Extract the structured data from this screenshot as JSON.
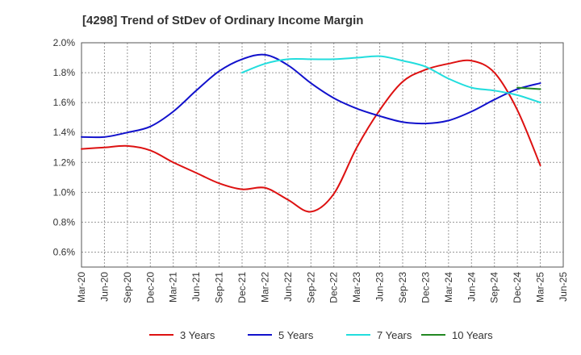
{
  "chart_data": {
    "type": "line",
    "title": "[4298]  Trend of StDev of Ordinary Income Margin",
    "xlabel": "",
    "ylabel": "",
    "x_ticks": [
      "Mar-20",
      "Jun-20",
      "Sep-20",
      "Dec-20",
      "Mar-21",
      "Jun-21",
      "Sep-21",
      "Dec-21",
      "Mar-22",
      "Jun-22",
      "Sep-22",
      "Dec-22",
      "Mar-23",
      "Jun-23",
      "Sep-23",
      "Dec-23",
      "Mar-24",
      "Jun-24",
      "Sep-24",
      "Dec-24",
      "Mar-25",
      "Jun-25"
    ],
    "y_ticks": [
      "0.6%",
      "0.8%",
      "1.0%",
      "1.2%",
      "1.4%",
      "1.6%",
      "1.8%",
      "2.0%"
    ],
    "ylim": [
      0.5,
      2.0
    ],
    "grid": true,
    "legend_position": "bottom",
    "series": [
      {
        "name": "3 Years",
        "color": "#dd1111",
        "points": [
          [
            "Mar-20",
            1.29
          ],
          [
            "Jun-20",
            1.3
          ],
          [
            "Sep-20",
            1.31
          ],
          [
            "Dec-20",
            1.28
          ],
          [
            "Mar-21",
            1.2
          ],
          [
            "Jun-21",
            1.13
          ],
          [
            "Sep-21",
            1.06
          ],
          [
            "Dec-21",
            1.02
          ],
          [
            "Mar-22",
            1.03
          ],
          [
            "Jun-22",
            0.95
          ],
          [
            "Sep-22",
            0.87
          ],
          [
            "Dec-22",
            0.99
          ],
          [
            "Mar-23",
            1.3
          ],
          [
            "Jun-23",
            1.55
          ],
          [
            "Sep-23",
            1.74
          ],
          [
            "Dec-23",
            1.82
          ],
          [
            "Mar-24",
            1.86
          ],
          [
            "Jun-24",
            1.88
          ],
          [
            "Sep-24",
            1.8
          ],
          [
            "Dec-24",
            1.55
          ],
          [
            "Mar-25",
            1.18
          ]
        ]
      },
      {
        "name": "5 Years",
        "color": "#1111cc",
        "points": [
          [
            "Mar-20",
            1.37
          ],
          [
            "Jun-20",
            1.37
          ],
          [
            "Sep-20",
            1.4
          ],
          [
            "Dec-20",
            1.44
          ],
          [
            "Mar-21",
            1.54
          ],
          [
            "Jun-21",
            1.68
          ],
          [
            "Sep-21",
            1.81
          ],
          [
            "Dec-21",
            1.89
          ],
          [
            "Mar-22",
            1.92
          ],
          [
            "Jun-22",
            1.85
          ],
          [
            "Sep-22",
            1.73
          ],
          [
            "Dec-22",
            1.63
          ],
          [
            "Mar-23",
            1.56
          ],
          [
            "Jun-23",
            1.51
          ],
          [
            "Sep-23",
            1.47
          ],
          [
            "Dec-23",
            1.46
          ],
          [
            "Mar-24",
            1.48
          ],
          [
            "Jun-24",
            1.54
          ],
          [
            "Sep-24",
            1.62
          ],
          [
            "Dec-24",
            1.69
          ],
          [
            "Mar-25",
            1.73
          ]
        ]
      },
      {
        "name": "7 Years",
        "color": "#22dddd",
        "points": [
          [
            "Dec-21",
            1.8
          ],
          [
            "Mar-22",
            1.86
          ],
          [
            "Jun-22",
            1.89
          ],
          [
            "Sep-22",
            1.89
          ],
          [
            "Dec-22",
            1.89
          ],
          [
            "Mar-23",
            1.9
          ],
          [
            "Jun-23",
            1.91
          ],
          [
            "Sep-23",
            1.88
          ],
          [
            "Dec-23",
            1.84
          ],
          [
            "Mar-24",
            1.76
          ],
          [
            "Jun-24",
            1.7
          ],
          [
            "Sep-24",
            1.68
          ],
          [
            "Dec-24",
            1.65
          ],
          [
            "Mar-25",
            1.6
          ]
        ]
      },
      {
        "name": "10 Years",
        "color": "#228822",
        "points": [
          [
            "Dec-24",
            1.7
          ],
          [
            "Mar-25",
            1.69
          ]
        ]
      }
    ]
  }
}
